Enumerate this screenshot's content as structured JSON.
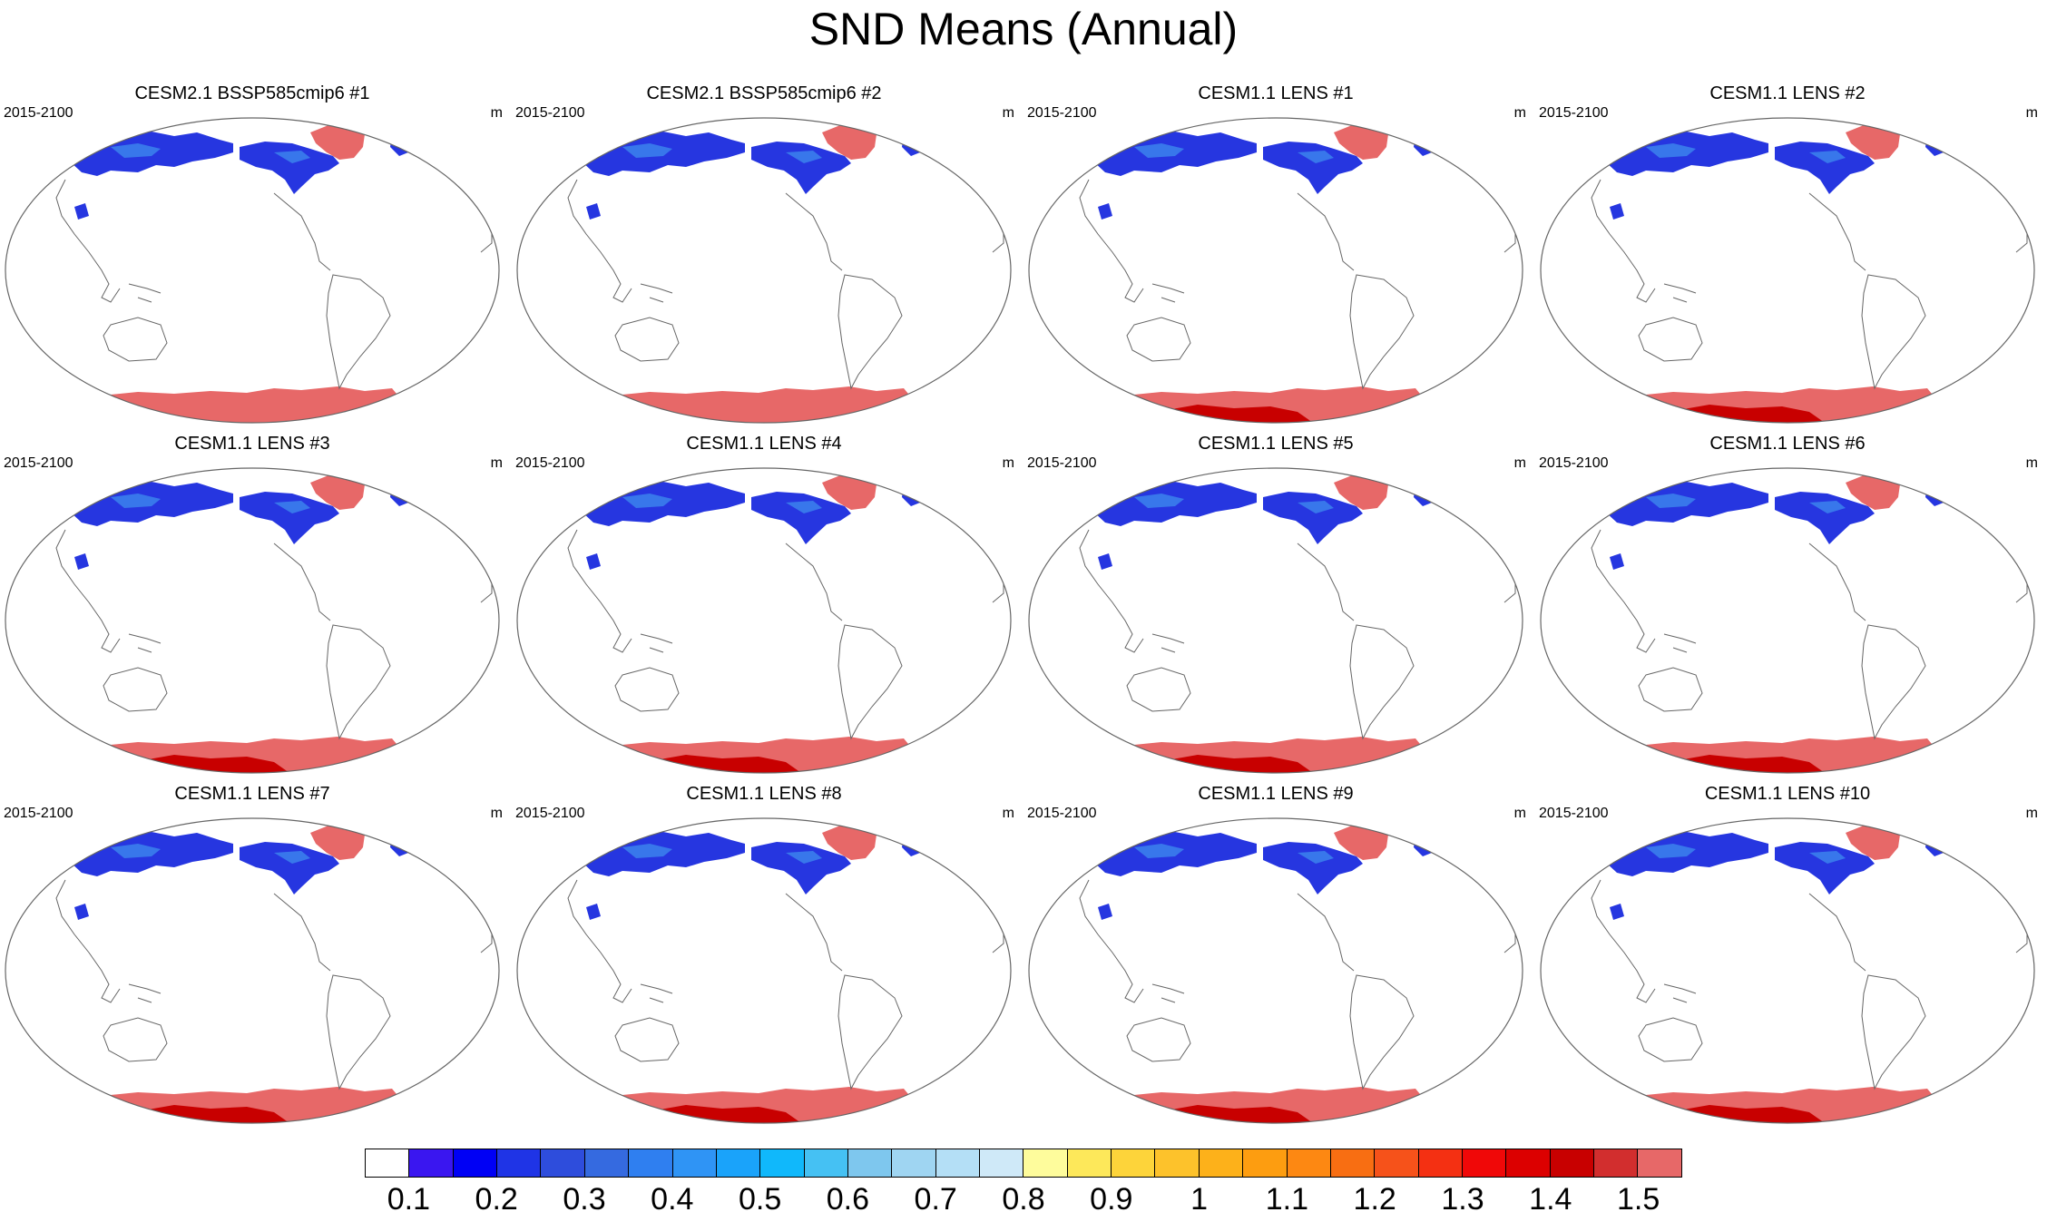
{
  "title": "SND Means (Annual)",
  "panels": [
    {
      "name": "CESM2.1 BSSP585cmip6 #1",
      "period": "2015-2100",
      "units": "m",
      "antarctic_core": false
    },
    {
      "name": "CESM2.1 BSSP585cmip6 #2",
      "period": "2015-2100",
      "units": "m",
      "antarctic_core": false
    },
    {
      "name": "CESM1.1 LENS #1",
      "period": "2015-2100",
      "units": "m",
      "antarctic_core": true
    },
    {
      "name": "CESM1.1 LENS #2",
      "period": "2015-2100",
      "units": "m",
      "antarctic_core": true
    },
    {
      "name": "CESM1.1 LENS #3",
      "period": "2015-2100",
      "units": "m",
      "antarctic_core": true
    },
    {
      "name": "CESM1.1 LENS #4",
      "period": "2015-2100",
      "units": "m",
      "antarctic_core": true
    },
    {
      "name": "CESM1.1 LENS #5",
      "period": "2015-2100",
      "units": "m",
      "antarctic_core": true
    },
    {
      "name": "CESM1.1 LENS #6",
      "period": "2015-2100",
      "units": "m",
      "antarctic_core": true
    },
    {
      "name": "CESM1.1 LENS #7",
      "period": "2015-2100",
      "units": "m",
      "antarctic_core": true
    },
    {
      "name": "CESM1.1 LENS #8",
      "period": "2015-2100",
      "units": "m",
      "antarctic_core": true
    },
    {
      "name": "CESM1.1 LENS #9",
      "period": "2015-2100",
      "units": "m",
      "antarctic_core": true
    },
    {
      "name": "CESM1.1 LENS #10",
      "period": "2015-2100",
      "units": "m",
      "antarctic_core": true
    }
  ],
  "colorbar": {
    "colors": [
      "#ffffff",
      "#3a16f0",
      "#0000f5",
      "#1f34e6",
      "#2e4ddc",
      "#356ae0",
      "#2f7ff0",
      "#2f94f5",
      "#1aa3fa",
      "#10b8fb",
      "#45c1f3",
      "#7ec7ee",
      "#9fd5f2",
      "#b4dff6",
      "#cfe9f8",
      "#fefc9c",
      "#fde85a",
      "#fdd43a",
      "#fdc22b",
      "#fdb11a",
      "#fd9d10",
      "#fd8812",
      "#f86e12",
      "#f6521a",
      "#f43012",
      "#f00808",
      "#dc0000",
      "#c80000",
      "#d22e2e",
      "#e76868"
    ],
    "labels": [
      "0.1",
      "0.2",
      "0.3",
      "0.4",
      "0.5",
      "0.6",
      "0.7",
      "0.8",
      "0.9",
      "1",
      "1.1",
      "1.2",
      "1.3",
      "1.4",
      "1.5"
    ]
  },
  "map_colors": {
    "snow_blue": "#2636e0",
    "snow_light": "#3d88ee",
    "deep_snow": "#e76868",
    "deepest_snow": "#c80000",
    "coast": "#666666"
  }
}
